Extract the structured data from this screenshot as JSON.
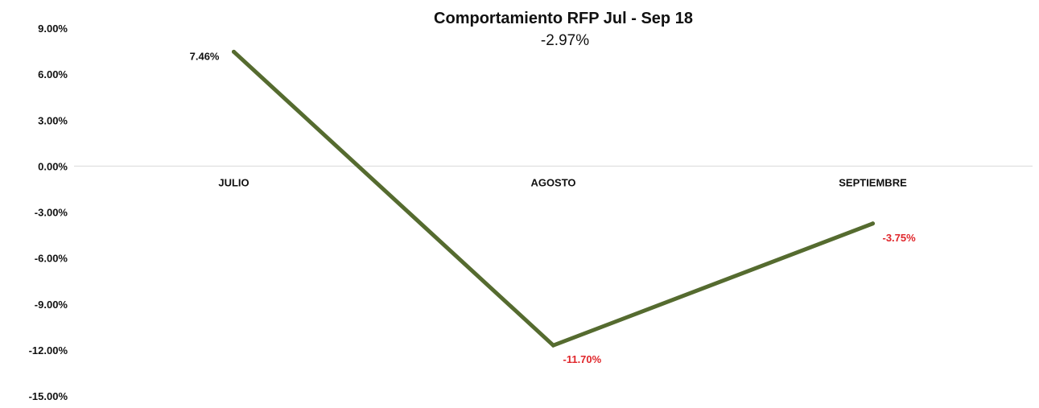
{
  "chart_data": {
    "type": "line",
    "title": "Comportamiento RFP Jul - Sep 18",
    "subtitle": "-2.97%",
    "categories": [
      "JULIO",
      "AGOSTO",
      "SEPTIEMBRE"
    ],
    "series": [
      {
        "values": [
          7.46,
          -11.7,
          -3.75
        ],
        "data_labels": [
          "7.46%",
          "-11.70%",
          "-3.75%"
        ],
        "color": "#556B2F"
      }
    ],
    "ylim": [
      -15,
      9
    ],
    "yticks": [
      "9.00%",
      "6.00%",
      "3.00%",
      "0.00%",
      "-3.00%",
      "-6.00%",
      "-9.00%",
      "-12.00%",
      "-15.00%"
    ],
    "ytick_values": [
      9,
      6,
      3,
      0,
      -3,
      -6,
      -9,
      -12,
      -15
    ],
    "grid": false,
    "legend": "none",
    "colors": {
      "line": "#556B2F",
      "positive_label": "#111111",
      "negative_label": "#E0262B",
      "zero_axis": "#d9d9d9"
    }
  }
}
